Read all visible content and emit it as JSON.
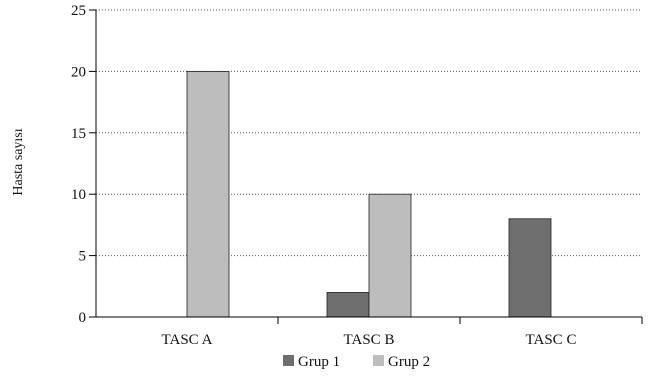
{
  "chart_data": {
    "type": "bar",
    "categories": [
      "TASC A",
      "TASC B",
      "TASC C"
    ],
    "series": [
      {
        "name": "Grup 1",
        "values": [
          0,
          2,
          8
        ],
        "color": "#6e6e6e"
      },
      {
        "name": "Grup 2",
        "values": [
          20,
          10,
          0
        ],
        "color": "#bdbdbd"
      }
    ],
    "ylabel": "Hasta sayısı",
    "xlabel": "",
    "ylim": [
      0,
      25
    ],
    "yticks": [
      0,
      5,
      10,
      15,
      20,
      25
    ],
    "ytick_labels": [
      "0",
      "5",
      "10",
      "15",
      "20",
      "25"
    ],
    "grid": "horizontal-dotted",
    "legend_position": "bottom"
  }
}
